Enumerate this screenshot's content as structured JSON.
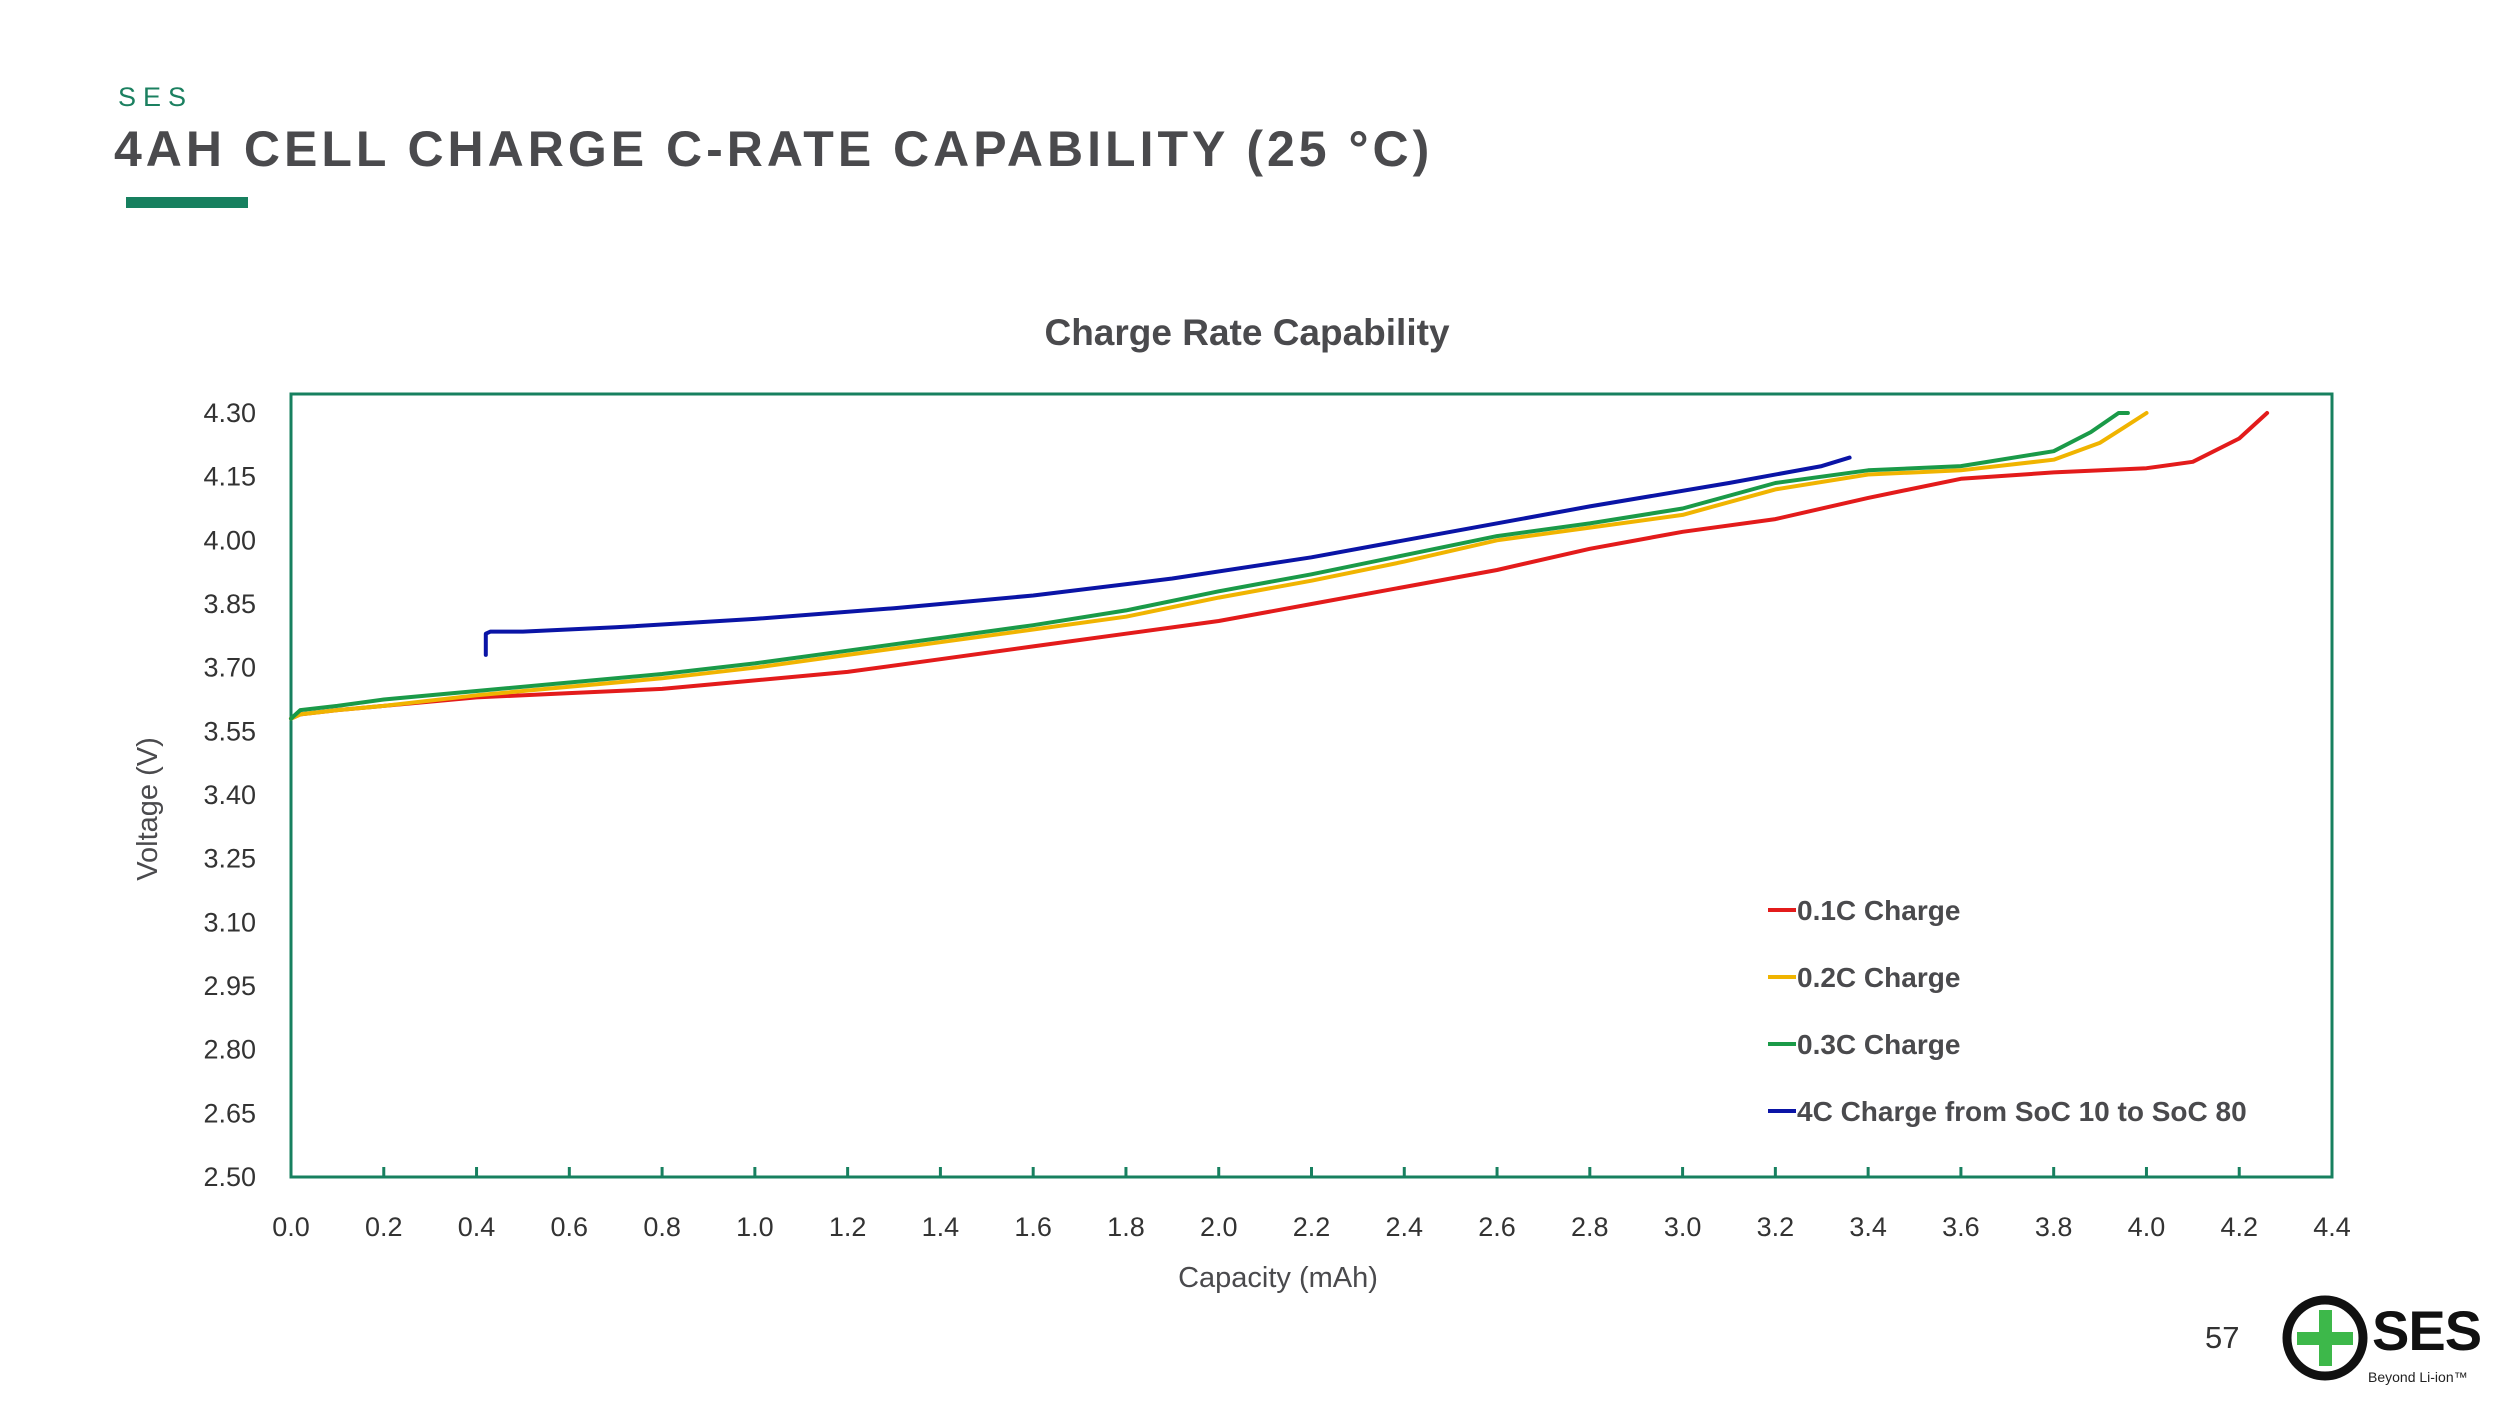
{
  "header": {
    "kicker": "SES",
    "title": "4AH CELL CHARGE C-RATE CAPABILITY (25 °C)"
  },
  "footer": {
    "page_number": "57",
    "logo_text": "SES",
    "logo_tagline": "Beyond Li-ion™"
  },
  "colors": {
    "accent": "#17805f",
    "axis": "#17805f",
    "title_text": "#4a4a4d"
  },
  "chart_data": {
    "type": "line",
    "title": "Charge Rate Capability",
    "xlabel": "Capacity (mAh)",
    "ylabel": "Voltage (V)",
    "xlim": [
      0,
      4.4
    ],
    "ylim": [
      2.5,
      4.3
    ],
    "xticks": [
      "0.0",
      "0.2",
      "0.4",
      "0.6",
      "0.8",
      "1.0",
      "1.2",
      "1.4",
      "1.6",
      "1.8",
      "2.0",
      "2.2",
      "2.4",
      "2.6",
      "2.8",
      "3.0",
      "3.2",
      "3.4",
      "3.6",
      "3.8",
      "4.0",
      "4.2",
      "4.4"
    ],
    "yticks": [
      "4.30",
      "4.15",
      "4.00",
      "3.85",
      "3.70",
      "3.55",
      "3.40",
      "3.25",
      "3.10",
      "2.95",
      "2.80",
      "2.65",
      "2.50"
    ],
    "grid": false,
    "legend_position": "bottom-right",
    "series": [
      {
        "name": "0.1C Charge",
        "color": "#e31b1b",
        "x": [
          0.0,
          0.02,
          0.1,
          0.2,
          0.4,
          0.6,
          0.8,
          1.0,
          1.2,
          1.4,
          1.6,
          1.8,
          2.0,
          2.2,
          2.4,
          2.6,
          2.8,
          3.0,
          3.2,
          3.4,
          3.6,
          3.8,
          4.0,
          4.1,
          4.2,
          4.26
        ],
        "y": [
          3.58,
          3.59,
          3.6,
          3.61,
          3.63,
          3.64,
          3.65,
          3.67,
          3.69,
          3.72,
          3.75,
          3.78,
          3.81,
          3.85,
          3.89,
          3.93,
          3.98,
          4.02,
          4.05,
          4.1,
          4.145,
          4.16,
          4.17,
          4.185,
          4.24,
          4.3
        ]
      },
      {
        "name": "0.2C Charge",
        "color": "#f0b400",
        "x": [
          0.0,
          0.02,
          0.1,
          0.2,
          0.4,
          0.6,
          0.8,
          1.0,
          1.2,
          1.4,
          1.6,
          1.8,
          2.0,
          2.2,
          2.4,
          2.6,
          2.8,
          3.0,
          3.2,
          3.4,
          3.6,
          3.8,
          3.9,
          3.95,
          4.0
        ],
        "y": [
          3.58,
          3.59,
          3.6,
          3.61,
          3.635,
          3.655,
          3.675,
          3.7,
          3.73,
          3.76,
          3.79,
          3.82,
          3.865,
          3.905,
          3.95,
          4.0,
          4.03,
          4.06,
          4.12,
          4.155,
          4.165,
          4.19,
          4.23,
          4.265,
          4.3
        ]
      },
      {
        "name": "0.3C Charge",
        "color": "#1a9a48",
        "x": [
          0.0,
          0.02,
          0.1,
          0.2,
          0.4,
          0.6,
          0.8,
          1.0,
          1.2,
          1.4,
          1.6,
          1.8,
          2.0,
          2.2,
          2.4,
          2.6,
          2.8,
          3.0,
          3.2,
          3.4,
          3.6,
          3.8,
          3.88,
          3.94,
          3.96
        ],
        "y": [
          3.58,
          3.6,
          3.61,
          3.625,
          3.645,
          3.665,
          3.685,
          3.71,
          3.74,
          3.77,
          3.8,
          3.835,
          3.88,
          3.92,
          3.965,
          4.01,
          4.04,
          4.075,
          4.135,
          4.165,
          4.175,
          4.21,
          4.255,
          4.3,
          4.3
        ]
      },
      {
        "name": "4C Charge from SoC 10 to SoC 80",
        "color": "#0a14a6",
        "x": [
          0.42,
          0.42,
          0.43,
          0.5,
          0.7,
          1.0,
          1.3,
          1.6,
          1.9,
          2.2,
          2.5,
          2.8,
          3.1,
          3.3,
          3.36
        ],
        "y": [
          3.73,
          3.78,
          3.785,
          3.785,
          3.795,
          3.815,
          3.84,
          3.87,
          3.91,
          3.96,
          4.02,
          4.08,
          4.135,
          4.175,
          4.195
        ]
      }
    ]
  }
}
